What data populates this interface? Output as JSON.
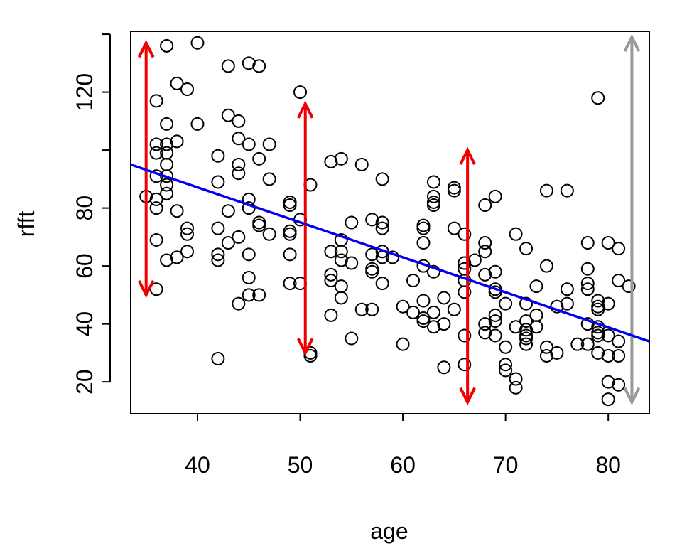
{
  "chart_data": {
    "type": "scatter",
    "xlabel": "age",
    "ylabel": "rfft",
    "xlim": [
      33.5,
      84
    ],
    "ylim": [
      9,
      141
    ],
    "x_ticks": [
      40,
      50,
      60,
      70,
      80
    ],
    "y_ticks": [
      20,
      40,
      60,
      80,
      120
    ],
    "y_tick_marks": [
      20,
      40,
      60,
      80,
      100,
      120,
      140
    ],
    "grid": false,
    "legend": "none",
    "regression_line": {
      "x": [
        33.5,
        84
      ],
      "y": [
        95,
        34
      ],
      "color": "#0000ee"
    },
    "arrows": [
      {
        "x": 35,
        "y_low": 50,
        "y_high": 137,
        "color": "#ee0000"
      },
      {
        "x": 50.5,
        "y_low": 30,
        "y_high": 116,
        "color": "#ee0000"
      },
      {
        "x": 66.3,
        "y_low": 13,
        "y_high": 100,
        "color": "#ee0000"
      },
      {
        "x": 82.3,
        "y_low": 13,
        "y_high": 139,
        "color": "#999999"
      }
    ],
    "points": [
      [
        35,
        84
      ],
      [
        36,
        117
      ],
      [
        36,
        102
      ],
      [
        36,
        99
      ],
      [
        36,
        91
      ],
      [
        36,
        83
      ],
      [
        36,
        80
      ],
      [
        36,
        69
      ],
      [
        36,
        52
      ],
      [
        37,
        136
      ],
      [
        37,
        109
      ],
      [
        37,
        102
      ],
      [
        37,
        99
      ],
      [
        37,
        95
      ],
      [
        37,
        91
      ],
      [
        37,
        88
      ],
      [
        37,
        85
      ],
      [
        37,
        62
      ],
      [
        38,
        123
      ],
      [
        38,
        103
      ],
      [
        38,
        79
      ],
      [
        38,
        63
      ],
      [
        39,
        121
      ],
      [
        39,
        73
      ],
      [
        39,
        71
      ],
      [
        39,
        65
      ],
      [
        40,
        137
      ],
      [
        40,
        109
      ],
      [
        42,
        98
      ],
      [
        42,
        89
      ],
      [
        42,
        73
      ],
      [
        42,
        64
      ],
      [
        42,
        62
      ],
      [
        42,
        28
      ],
      [
        43,
        129
      ],
      [
        43,
        112
      ],
      [
        43,
        79
      ],
      [
        43,
        68
      ],
      [
        44,
        110
      ],
      [
        44,
        104
      ],
      [
        44,
        95
      ],
      [
        44,
        92
      ],
      [
        44,
        70
      ],
      [
        44,
        47
      ],
      [
        45,
        130
      ],
      [
        45,
        102
      ],
      [
        45,
        83
      ],
      [
        45,
        80
      ],
      [
        45,
        64
      ],
      [
        45,
        56
      ],
      [
        45,
        50
      ],
      [
        46,
        129
      ],
      [
        46,
        97
      ],
      [
        46,
        75
      ],
      [
        46,
        74
      ],
      [
        46,
        50
      ],
      [
        47,
        102
      ],
      [
        47,
        90
      ],
      [
        47,
        71
      ],
      [
        49,
        82
      ],
      [
        49,
        81
      ],
      [
        49,
        72
      ],
      [
        49,
        71
      ],
      [
        49,
        64
      ],
      [
        49,
        54
      ],
      [
        50,
        120
      ],
      [
        50,
        76
      ],
      [
        50,
        54
      ],
      [
        51,
        88
      ],
      [
        51,
        30
      ],
      [
        51,
        29
      ],
      [
        53,
        96
      ],
      [
        53,
        65
      ],
      [
        53,
        57
      ],
      [
        53,
        55
      ],
      [
        53,
        43
      ],
      [
        54,
        97
      ],
      [
        54,
        69
      ],
      [
        54,
        65
      ],
      [
        54,
        62
      ],
      [
        54,
        53
      ],
      [
        54,
        49
      ],
      [
        55,
        75
      ],
      [
        55,
        61
      ],
      [
        55,
        35
      ],
      [
        56,
        95
      ],
      [
        56,
        45
      ],
      [
        57,
        76
      ],
      [
        57,
        64
      ],
      [
        57,
        59
      ],
      [
        57,
        58
      ],
      [
        57,
        45
      ],
      [
        58,
        90
      ],
      [
        58,
        75
      ],
      [
        58,
        73
      ],
      [
        58,
        65
      ],
      [
        58,
        63
      ],
      [
        58,
        54
      ],
      [
        59,
        63
      ],
      [
        60,
        46
      ],
      [
        60,
        33
      ],
      [
        61,
        55
      ],
      [
        61,
        44
      ],
      [
        62,
        74
      ],
      [
        62,
        73
      ],
      [
        62,
        68
      ],
      [
        62,
        60
      ],
      [
        62,
        48
      ],
      [
        62,
        42
      ],
      [
        62,
        41
      ],
      [
        63,
        89
      ],
      [
        63,
        84
      ],
      [
        63,
        82
      ],
      [
        63,
        81
      ],
      [
        63,
        58
      ],
      [
        63,
        44
      ],
      [
        63,
        39
      ],
      [
        64,
        49
      ],
      [
        64,
        40
      ],
      [
        64,
        25
      ],
      [
        65,
        87
      ],
      [
        65,
        86
      ],
      [
        65,
        73
      ],
      [
        65,
        45
      ],
      [
        66,
        71
      ],
      [
        66,
        61
      ],
      [
        66,
        59
      ],
      [
        66,
        55
      ],
      [
        66,
        51
      ],
      [
        66,
        36
      ],
      [
        66,
        26
      ],
      [
        67,
        62
      ],
      [
        68,
        81
      ],
      [
        68,
        68
      ],
      [
        68,
        65
      ],
      [
        68,
        57
      ],
      [
        68,
        40
      ],
      [
        68,
        37
      ],
      [
        69,
        84
      ],
      [
        69,
        58
      ],
      [
        69,
        52
      ],
      [
        69,
        51
      ],
      [
        69,
        43
      ],
      [
        69,
        41
      ],
      [
        69,
        36
      ],
      [
        70,
        47
      ],
      [
        70,
        32
      ],
      [
        70,
        26
      ],
      [
        70,
        24
      ],
      [
        71,
        71
      ],
      [
        71,
        39
      ],
      [
        71,
        21
      ],
      [
        71,
        18
      ],
      [
        72,
        66
      ],
      [
        72,
        47
      ],
      [
        72,
        41
      ],
      [
        72,
        38
      ],
      [
        72,
        36
      ],
      [
        72,
        35
      ],
      [
        72,
        33
      ],
      [
        73,
        53
      ],
      [
        73,
        43
      ],
      [
        73,
        39
      ],
      [
        74,
        86
      ],
      [
        74,
        60
      ],
      [
        74,
        32
      ],
      [
        74,
        29
      ],
      [
        75,
        46
      ],
      [
        75,
        30
      ],
      [
        76,
        86
      ],
      [
        76,
        52
      ],
      [
        76,
        47
      ],
      [
        77,
        33
      ],
      [
        78,
        68
      ],
      [
        78,
        59
      ],
      [
        78,
        54
      ],
      [
        78,
        52
      ],
      [
        78,
        40
      ],
      [
        78,
        33
      ],
      [
        79,
        118
      ],
      [
        79,
        48
      ],
      [
        79,
        46
      ],
      [
        79,
        45
      ],
      [
        79,
        39
      ],
      [
        79,
        37
      ],
      [
        79,
        36
      ],
      [
        79,
        30
      ],
      [
        80,
        68
      ],
      [
        80,
        47
      ],
      [
        80,
        36
      ],
      [
        80,
        29
      ],
      [
        80,
        20
      ],
      [
        80,
        14
      ],
      [
        81,
        66
      ],
      [
        81,
        55
      ],
      [
        81,
        34
      ],
      [
        81,
        29
      ],
      [
        81,
        19
      ],
      [
        82,
        53
      ]
    ]
  }
}
